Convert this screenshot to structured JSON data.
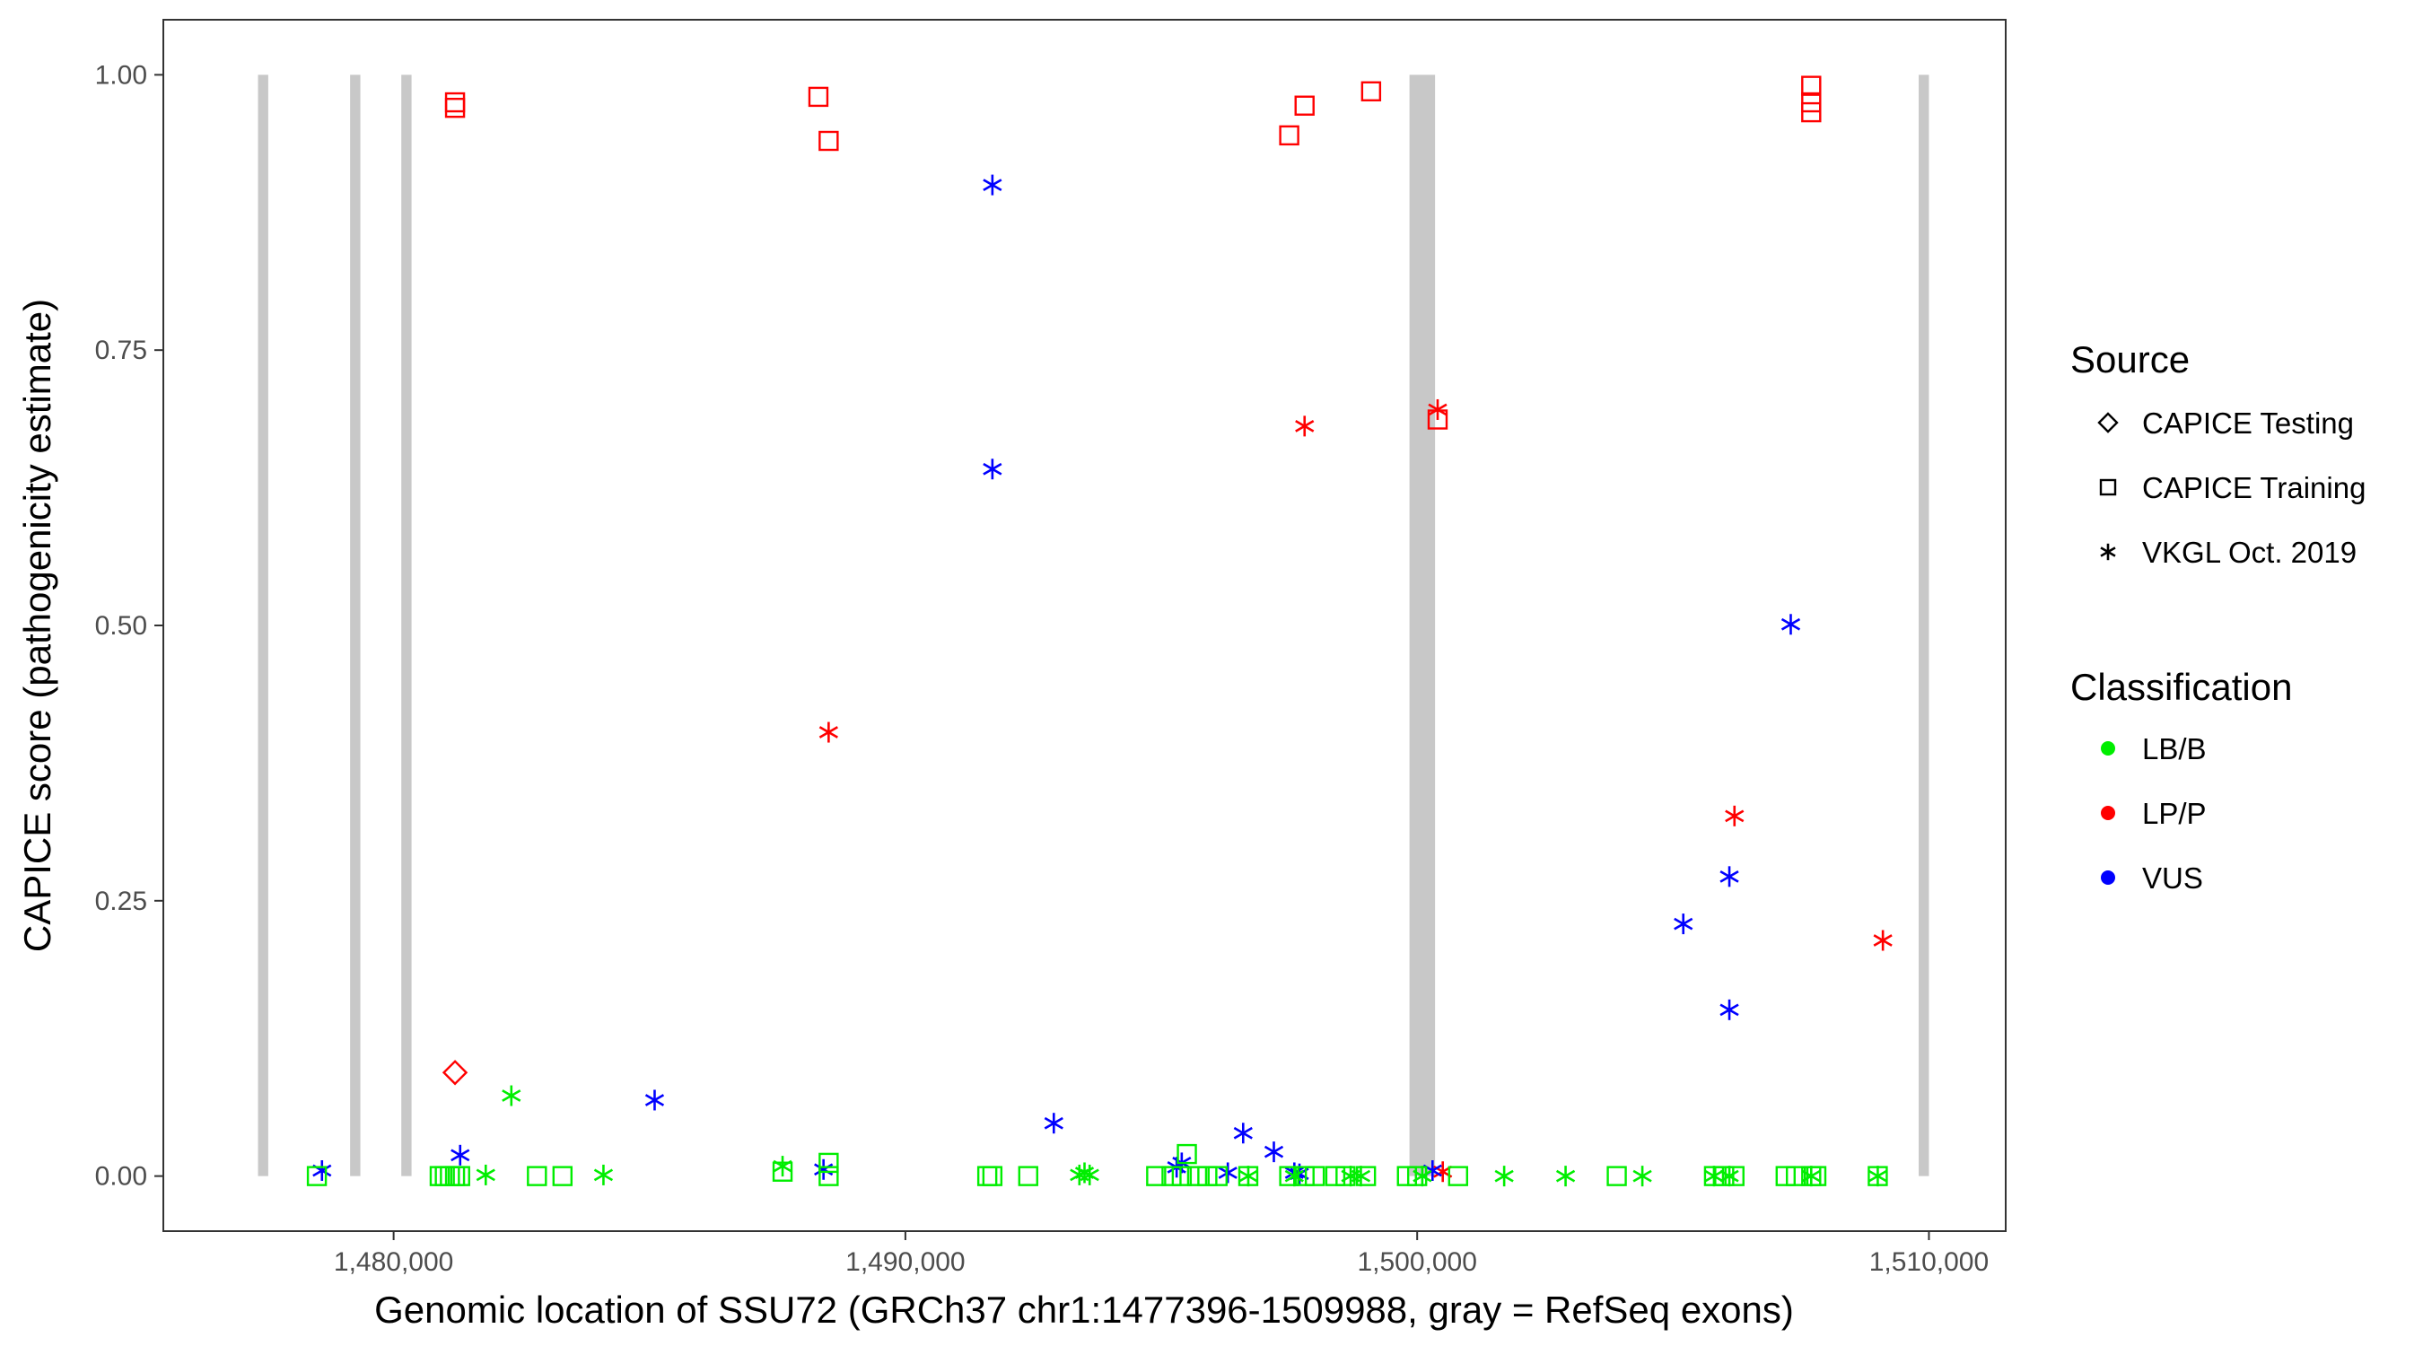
{
  "chart_data": {
    "type": "scatter",
    "title": "",
    "xlabel": "Genomic location of SSU72 (GRCh37 chr1:1477396-1509988, gray = RefSeq exons)",
    "ylabel": "CAPICE score (pathogenicity estimate)",
    "xlim": [
      1475500,
      1511500
    ],
    "ylim": [
      -0.05,
      1.05
    ],
    "x_ticks": [
      1480000,
      1490000,
      1500000,
      1510000
    ],
    "x_tick_labels": [
      "1,480,000",
      "1,490,000",
      "1,500,000",
      "1,510,000"
    ],
    "y_ticks": [
      0,
      0.25,
      0.5,
      0.75,
      1.0
    ],
    "y_tick_labels": [
      "0.00",
      "0.25",
      "0.50",
      "0.75",
      "1.00"
    ],
    "exons": [
      [
        1477350,
        1477550
      ],
      [
        1479150,
        1479350
      ],
      [
        1480150,
        1480350
      ],
      [
        1499850,
        1500350
      ],
      [
        1509800,
        1510000
      ]
    ],
    "exon_color": "#c8c8c8",
    "colors": {
      "LB/B": "#00ee00",
      "LP/P": "#ff0000",
      "VUS": "#0000ff"
    },
    "legend": {
      "source_title": "Source",
      "sources": [
        {
          "label": "CAPICE Testing",
          "shape": "diamond"
        },
        {
          "label": "CAPICE Training",
          "shape": "square"
        },
        {
          "label": "VKGL Oct. 2019",
          "shape": "asterisk"
        }
      ],
      "class_title": "Classification",
      "classes": [
        {
          "label": "LB/B",
          "color": "#00ee00"
        },
        {
          "label": "LP/P",
          "color": "#ff0000"
        },
        {
          "label": "VUS",
          "color": "#0000ff"
        }
      ]
    },
    "series": [
      {
        "name": "LP/P CAPICE Testing",
        "class": "LP/P",
        "shape": "diamond",
        "points": [
          [
            1481200,
            0.094
          ]
        ]
      },
      {
        "name": "LP/P CAPICE Training",
        "class": "LP/P",
        "shape": "square",
        "points": [
          [
            1481200,
            0.975
          ],
          [
            1481200,
            0.97
          ],
          [
            1488300,
            0.98
          ],
          [
            1488500,
            0.94
          ],
          [
            1497500,
            0.945
          ],
          [
            1497800,
            0.972
          ],
          [
            1499100,
            0.985
          ],
          [
            1500400,
            0.687
          ],
          [
            1507700,
            0.99
          ],
          [
            1507700,
            0.975
          ],
          [
            1507700,
            0.966
          ]
        ]
      },
      {
        "name": "LP/P VKGL Oct. 2019",
        "class": "LP/P",
        "shape": "asterisk",
        "points": [
          [
            1488500,
            0.403
          ],
          [
            1497800,
            0.681
          ],
          [
            1500400,
            0.696
          ],
          [
            1500500,
            0.004
          ],
          [
            1506200,
            0.327
          ],
          [
            1509100,
            0.214
          ]
        ]
      },
      {
        "name": "VUS VKGL Oct. 2019",
        "class": "VUS",
        "shape": "asterisk",
        "points": [
          [
            1478600,
            0.005
          ],
          [
            1481300,
            0.019
          ],
          [
            1485100,
            0.069
          ],
          [
            1488400,
            0.006
          ],
          [
            1491700,
            0.9
          ],
          [
            1491700,
            0.642
          ],
          [
            1492900,
            0.048
          ],
          [
            1495300,
            0.008
          ],
          [
            1495400,
            0.012
          ],
          [
            1496300,
            0.003
          ],
          [
            1496600,
            0.039
          ],
          [
            1497200,
            0.022
          ],
          [
            1497600,
            0.003
          ],
          [
            1497700,
            0.002
          ],
          [
            1500300,
            0.005
          ],
          [
            1505200,
            0.229
          ],
          [
            1506100,
            0.272
          ],
          [
            1506100,
            0.151
          ],
          [
            1507300,
            0.501
          ]
        ]
      },
      {
        "name": "LB/B CAPICE Training",
        "class": "LB/B",
        "shape": "square",
        "points": [
          [
            1478500,
            0.0
          ],
          [
            1480900,
            0.0
          ],
          [
            1481000,
            0.0
          ],
          [
            1481100,
            0.0
          ],
          [
            1481200,
            0.0
          ],
          [
            1481300,
            0.0
          ],
          [
            1482800,
            0.0
          ],
          [
            1483300,
            0.0
          ],
          [
            1487600,
            0.004
          ],
          [
            1488500,
            0.0
          ],
          [
            1488500,
            0.012
          ],
          [
            1491600,
            0.0
          ],
          [
            1491700,
            0.0
          ],
          [
            1492400,
            0.0
          ],
          [
            1494900,
            0.0
          ],
          [
            1495200,
            0.0
          ],
          [
            1495400,
            0.0
          ],
          [
            1495500,
            0.02
          ],
          [
            1495700,
            0.0
          ],
          [
            1495900,
            0.0
          ],
          [
            1496100,
            0.0
          ],
          [
            1496700,
            0.0
          ],
          [
            1497500,
            0.0
          ],
          [
            1497800,
            0.0
          ],
          [
            1498000,
            0.0
          ],
          [
            1498400,
            0.0
          ],
          [
            1498600,
            0.0
          ],
          [
            1499000,
            0.0
          ],
          [
            1499800,
            0.0
          ],
          [
            1500000,
            0.0
          ],
          [
            1500800,
            0.0
          ],
          [
            1503900,
            0.0
          ],
          [
            1505800,
            0.0
          ],
          [
            1506000,
            0.0
          ],
          [
            1506200,
            0.0
          ],
          [
            1507200,
            0.0
          ],
          [
            1507400,
            0.0
          ],
          [
            1507700,
            0.0
          ],
          [
            1507800,
            0.0
          ],
          [
            1509000,
            0.0
          ]
        ]
      },
      {
        "name": "LB/B VKGL Oct. 2019",
        "class": "LB/B",
        "shape": "asterisk",
        "points": [
          [
            1481800,
            0.001
          ],
          [
            1482300,
            0.073
          ],
          [
            1484100,
            0.001
          ],
          [
            1487600,
            0.009
          ],
          [
            1493400,
            0.001
          ],
          [
            1493500,
            0.003
          ],
          [
            1493600,
            0.001
          ],
          [
            1496700,
            0.0
          ],
          [
            1497600,
            0.0
          ],
          [
            1498700,
            0.0
          ],
          [
            1498900,
            0.0
          ],
          [
            1500100,
            0.0
          ],
          [
            1501700,
            0.0
          ],
          [
            1502900,
            0.0
          ],
          [
            1504400,
            0.0
          ],
          [
            1505800,
            0.0
          ],
          [
            1506100,
            0.0
          ],
          [
            1507700,
            0.0
          ],
          [
            1509000,
            0.0
          ]
        ]
      }
    ]
  }
}
